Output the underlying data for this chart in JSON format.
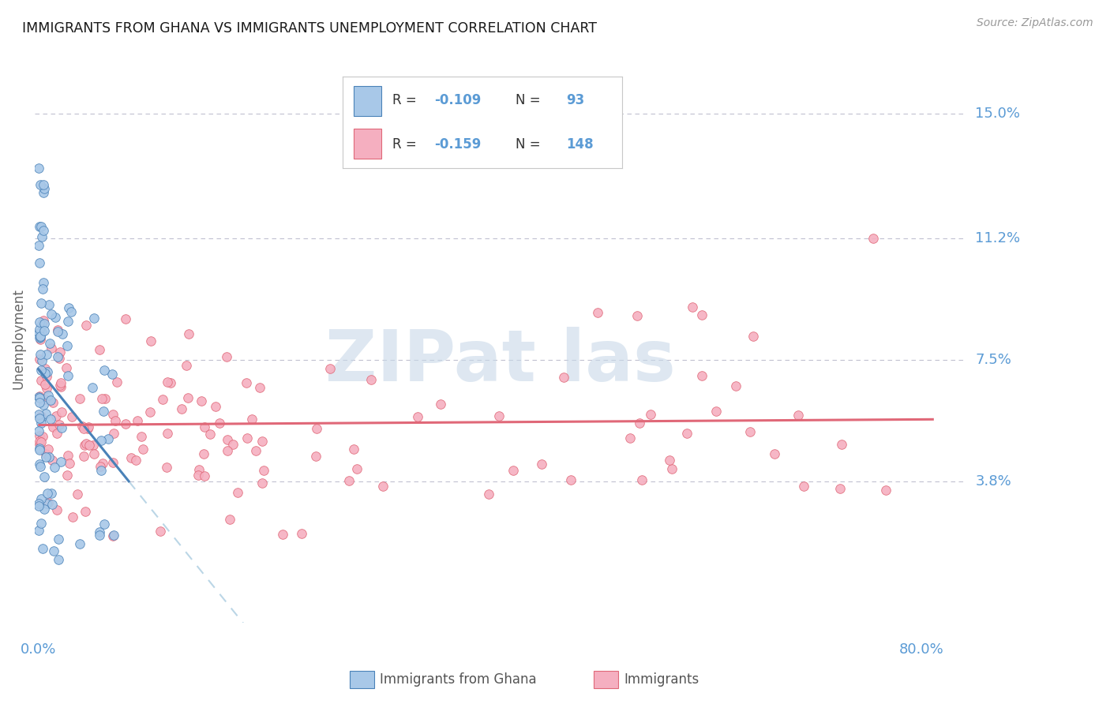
{
  "title": "IMMIGRANTS FROM GHANA VS IMMIGRANTS UNEMPLOYMENT CORRELATION CHART",
  "source": "Source: ZipAtlas.com",
  "ylabel": "Unemployment",
  "ytick_labels": [
    "15.0%",
    "11.2%",
    "7.5%",
    "3.8%"
  ],
  "ytick_values": [
    0.15,
    0.112,
    0.075,
    0.038
  ],
  "xlim": [
    -0.003,
    0.82
  ],
  "ylim": [
    -0.005,
    0.168
  ],
  "color_ghana": "#a8c8e8",
  "color_immigrants": "#f5afc0",
  "color_trendline_ghana": "#4a82b8",
  "color_trendline_immigrants": "#e06878",
  "color_trendline_dashed": "#aacce0",
  "background_color": "#ffffff",
  "grid_color": "#c0c0d0",
  "title_color": "#1a1a1a",
  "axis_label_color": "#5b9bd5",
  "watermark_color": "#c8d8e8",
  "legend_box_color": "#ffffff",
  "legend_border_color": "#d0d0d0"
}
